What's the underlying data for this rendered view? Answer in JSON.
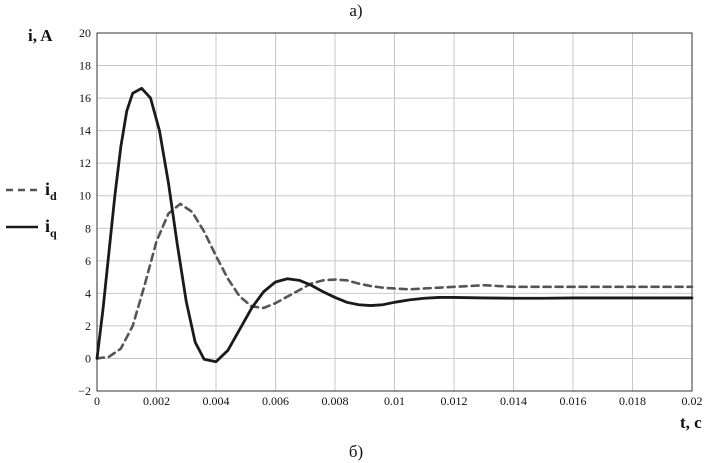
{
  "panel_top_label": "а)",
  "panel_bottom_label": "б)",
  "chart_data": {
    "type": "line",
    "xlabel": "t, c",
    "ylabel": "i, A",
    "xlim": [
      0,
      0.02
    ],
    "ylim": [
      -2,
      20
    ],
    "grid": true,
    "legend_placement": "left",
    "x_ticks": [
      "0",
      "0.002",
      "0.004",
      "0.006",
      "0.008",
      "0.01",
      "0.012",
      "0.014",
      "0.016",
      "0.018",
      "0.02"
    ],
    "y_ticks": [
      "−2",
      "0",
      "2",
      "4",
      "6",
      "8",
      "10",
      "12",
      "14",
      "16",
      "18",
      "20"
    ],
    "series": [
      {
        "name": "i",
        "sub": "d",
        "style": "dashed",
        "color": "#555555",
        "points": [
          [
            0,
            0
          ],
          [
            0.0004,
            0.1
          ],
          [
            0.0008,
            0.6
          ],
          [
            0.0012,
            2.0
          ],
          [
            0.0016,
            4.5
          ],
          [
            0.002,
            7.2
          ],
          [
            0.0024,
            8.9
          ],
          [
            0.0028,
            9.5
          ],
          [
            0.0032,
            9.0
          ],
          [
            0.0036,
            7.8
          ],
          [
            0.004,
            6.3
          ],
          [
            0.0044,
            4.9
          ],
          [
            0.0048,
            3.8
          ],
          [
            0.0052,
            3.2
          ],
          [
            0.0056,
            3.1
          ],
          [
            0.006,
            3.4
          ],
          [
            0.0064,
            3.8
          ],
          [
            0.0068,
            4.2
          ],
          [
            0.0072,
            4.6
          ],
          [
            0.0076,
            4.8
          ],
          [
            0.008,
            4.85
          ],
          [
            0.0084,
            4.8
          ],
          [
            0.0088,
            4.6
          ],
          [
            0.0092,
            4.45
          ],
          [
            0.0096,
            4.35
          ],
          [
            0.01,
            4.3
          ],
          [
            0.0105,
            4.25
          ],
          [
            0.011,
            4.3
          ],
          [
            0.0115,
            4.35
          ],
          [
            0.012,
            4.4
          ],
          [
            0.0125,
            4.45
          ],
          [
            0.013,
            4.5
          ],
          [
            0.0135,
            4.45
          ],
          [
            0.014,
            4.4
          ],
          [
            0.015,
            4.4
          ],
          [
            0.016,
            4.4
          ],
          [
            0.017,
            4.4
          ],
          [
            0.018,
            4.4
          ],
          [
            0.019,
            4.4
          ],
          [
            0.02,
            4.4
          ]
        ]
      },
      {
        "name": "i",
        "sub": "q",
        "style": "solid",
        "color": "#1a1a1a",
        "points": [
          [
            0,
            0
          ],
          [
            0.0002,
            3.0
          ],
          [
            0.0004,
            6.5
          ],
          [
            0.0006,
            10.0
          ],
          [
            0.0008,
            13.0
          ],
          [
            0.001,
            15.2
          ],
          [
            0.0012,
            16.3
          ],
          [
            0.0015,
            16.6
          ],
          [
            0.0018,
            16.0
          ],
          [
            0.0021,
            14.0
          ],
          [
            0.0024,
            10.8
          ],
          [
            0.0027,
            7.0
          ],
          [
            0.003,
            3.5
          ],
          [
            0.0033,
            1.0
          ],
          [
            0.0036,
            -0.05
          ],
          [
            0.004,
            -0.2
          ],
          [
            0.0044,
            0.5
          ],
          [
            0.0048,
            1.8
          ],
          [
            0.0052,
            3.1
          ],
          [
            0.0056,
            4.1
          ],
          [
            0.006,
            4.7
          ],
          [
            0.0064,
            4.9
          ],
          [
            0.0068,
            4.8
          ],
          [
            0.0072,
            4.5
          ],
          [
            0.0076,
            4.1
          ],
          [
            0.008,
            3.75
          ],
          [
            0.0084,
            3.45
          ],
          [
            0.0088,
            3.3
          ],
          [
            0.0092,
            3.25
          ],
          [
            0.0096,
            3.3
          ],
          [
            0.01,
            3.45
          ],
          [
            0.0105,
            3.6
          ],
          [
            0.011,
            3.7
          ],
          [
            0.0115,
            3.75
          ],
          [
            0.012,
            3.75
          ],
          [
            0.013,
            3.72
          ],
          [
            0.014,
            3.7
          ],
          [
            0.015,
            3.7
          ],
          [
            0.016,
            3.72
          ],
          [
            0.017,
            3.72
          ],
          [
            0.018,
            3.72
          ],
          [
            0.019,
            3.72
          ],
          [
            0.02,
            3.72
          ]
        ]
      }
    ]
  }
}
